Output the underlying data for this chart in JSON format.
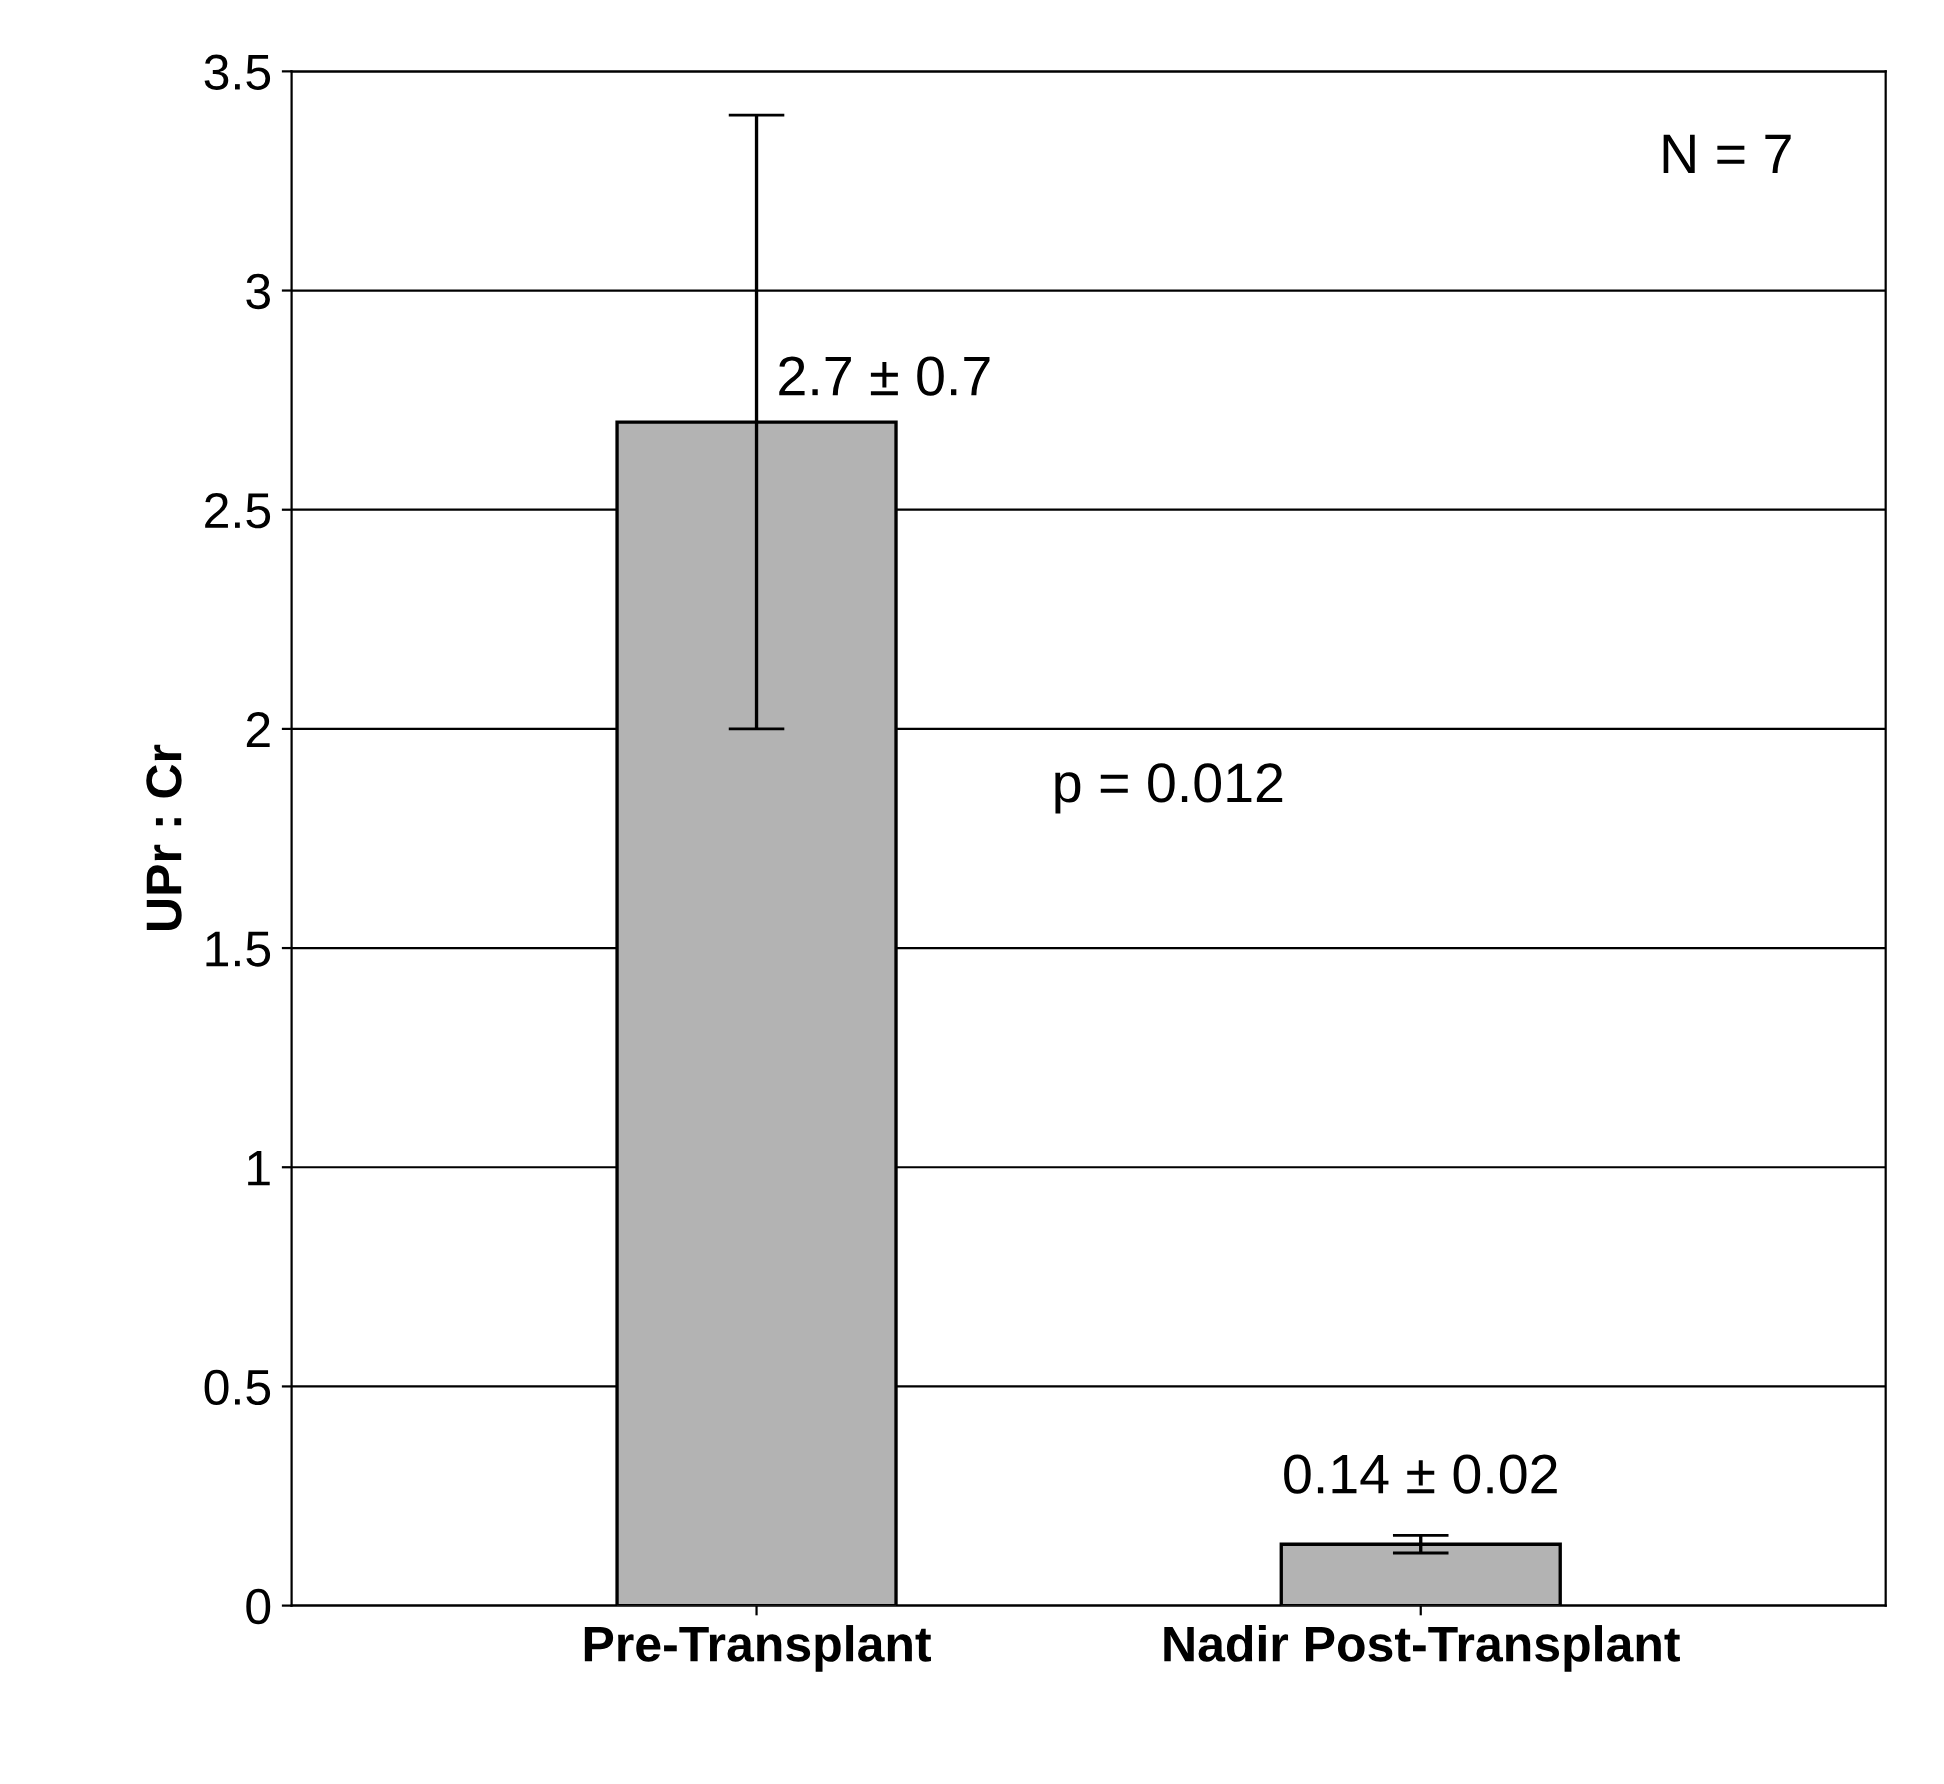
{
  "chart_data": {
    "type": "bar",
    "ylabel": "UPr : Cr",
    "categories": [
      "Pre-Transplant",
      "Nadir Post-Transplant"
    ],
    "values": [
      2.7,
      0.14
    ],
    "errors": [
      0.7,
      0.02
    ],
    "value_labels": [
      "2.7 ± 0.7",
      "0.14 ± 0.02"
    ],
    "color": "#b3b3b3",
    "ylim": [
      0,
      3.5
    ],
    "yticks": [
      0,
      0.5,
      1,
      1.5,
      2,
      2.5,
      3,
      3.5
    ],
    "grid": "y",
    "annotations": [
      "N = 7",
      "p = 0.012"
    ]
  }
}
